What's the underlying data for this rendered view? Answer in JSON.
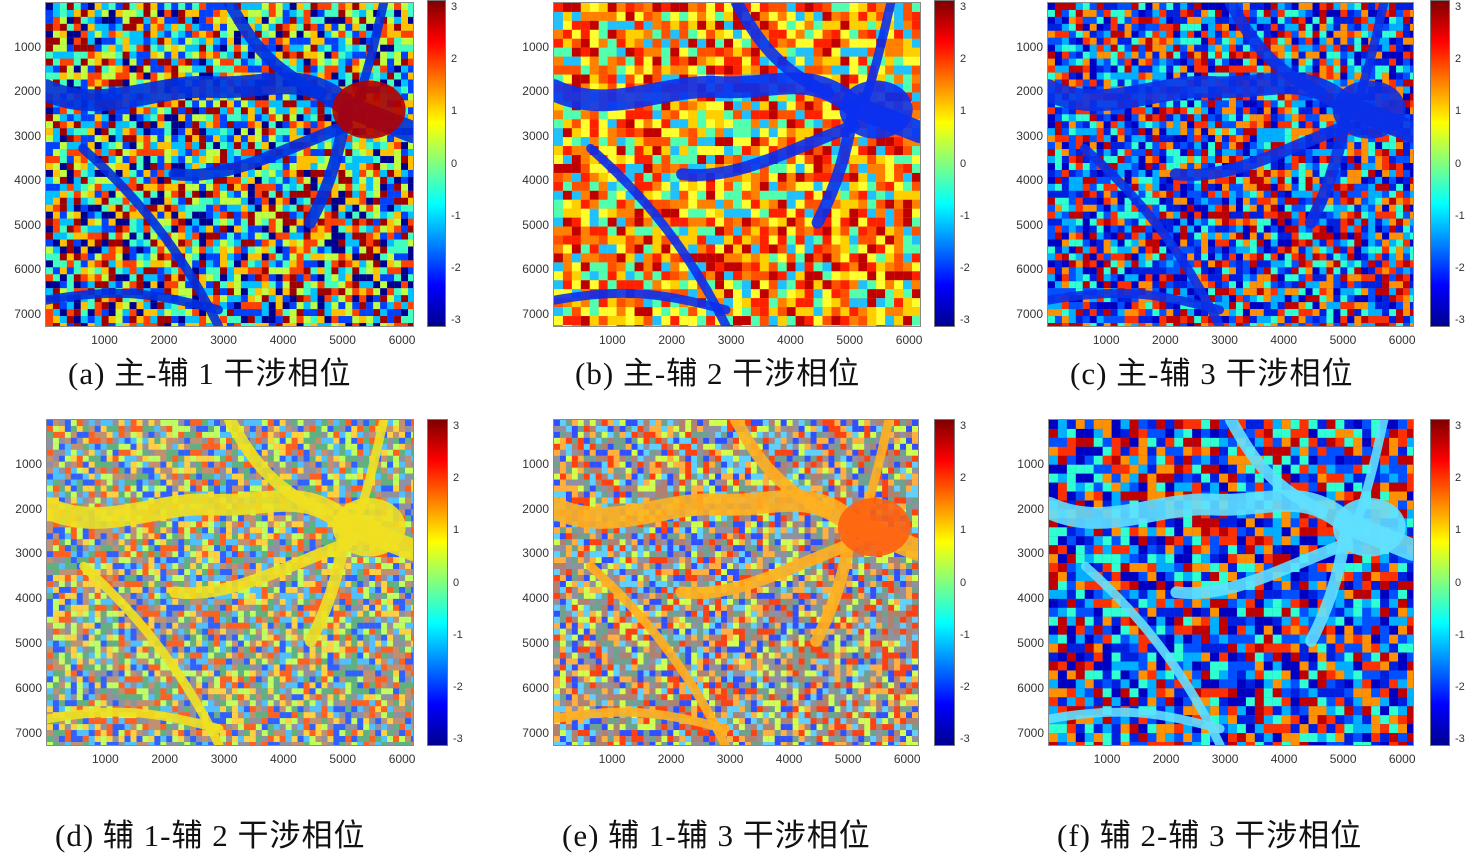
{
  "figure": {
    "panels": [
      {
        "id": "a",
        "caption": "(a)  主-辅 1 干涉相位",
        "pattern": "fringe-dense",
        "dominant": "mixed"
      },
      {
        "id": "b",
        "caption": "(b)  主-辅 2 干涉相位",
        "pattern": "smooth",
        "dominant": "red-yellow"
      },
      {
        "id": "c",
        "caption": "(c)  主-辅 3 干涉相位",
        "pattern": "fringe-dense",
        "dominant": "blue-red"
      },
      {
        "id": "d",
        "caption": "(d)  辅 1-辅 2 干涉相位",
        "pattern": "noisy",
        "dominant": "noise-yellow"
      },
      {
        "id": "e",
        "caption": "(e)  辅 1-辅 3 干涉相位",
        "pattern": "noisy",
        "dominant": "noise-orange"
      },
      {
        "id": "f",
        "caption": "(f)  辅 2-辅 3 干涉相位",
        "pattern": "smooth",
        "dominant": "blue-red"
      }
    ],
    "y_ticks": [
      "1000",
      "2000",
      "3000",
      "4000",
      "5000",
      "6000",
      "7000"
    ],
    "x_ticks": [
      "1000",
      "2000",
      "3000",
      "4000",
      "5000",
      "6000"
    ],
    "colorbar_ticks": [
      "3",
      "2",
      "1",
      "0",
      "-1",
      "-2",
      "-3"
    ]
  },
  "chart_data": [
    {
      "type": "heatmap",
      "title": "(a) 主-辅 1 干涉相位",
      "xlabel": "",
      "ylabel": "",
      "xlim": [
        0,
        6200
      ],
      "ylim": [
        7300,
        0
      ],
      "x_ticks": [
        1000,
        2000,
        3000,
        4000,
        5000,
        6000
      ],
      "y_ticks": [
        1000,
        2000,
        3000,
        4000,
        5000,
        6000,
        7000
      ],
      "colorbar": {
        "range": [
          -3.14,
          3.14
        ],
        "ticks": [
          -3,
          -2,
          -1,
          0,
          1,
          2,
          3
        ],
        "colormap": "jet"
      }
    },
    {
      "type": "heatmap",
      "title": "(b) 主-辅 2 干涉相位",
      "xlabel": "",
      "ylabel": "",
      "xlim": [
        0,
        6200
      ],
      "ylim": [
        7300,
        0
      ],
      "x_ticks": [
        1000,
        2000,
        3000,
        4000,
        5000,
        6000
      ],
      "y_ticks": [
        1000,
        2000,
        3000,
        4000,
        5000,
        6000,
        7000
      ],
      "colorbar": {
        "range": [
          -3.14,
          3.14
        ],
        "ticks": [
          -3,
          -2,
          -1,
          0,
          1,
          2,
          3
        ],
        "colormap": "jet"
      }
    },
    {
      "type": "heatmap",
      "title": "(c) 主-辅 3 干涉相位",
      "xlabel": "",
      "ylabel": "",
      "xlim": [
        0,
        6200
      ],
      "ylim": [
        7300,
        0
      ],
      "x_ticks": [
        1000,
        2000,
        3000,
        4000,
        5000,
        6000
      ],
      "y_ticks": [
        1000,
        2000,
        3000,
        4000,
        5000,
        6000,
        7000
      ],
      "colorbar": {
        "range": [
          -3.14,
          3.14
        ],
        "ticks": [
          -3,
          -2,
          -1,
          0,
          1,
          2,
          3
        ],
        "colormap": "jet"
      }
    },
    {
      "type": "heatmap",
      "title": "(d) 辅 1-辅 2 干涉相位",
      "xlabel": "",
      "ylabel": "",
      "xlim": [
        0,
        6200
      ],
      "ylim": [
        7300,
        0
      ],
      "x_ticks": [
        1000,
        2000,
        3000,
        4000,
        5000,
        6000
      ],
      "y_ticks": [
        1000,
        2000,
        3000,
        4000,
        5000,
        6000,
        7000
      ],
      "colorbar": {
        "range": [
          -3.14,
          3.14
        ],
        "ticks": [
          -3,
          -2,
          -1,
          0,
          1,
          2,
          3
        ],
        "colormap": "jet"
      }
    },
    {
      "type": "heatmap",
      "title": "(e) 辅 1-辅 3 干涉相位",
      "xlabel": "",
      "ylabel": "",
      "xlim": [
        0,
        6200
      ],
      "ylim": [
        7300,
        0
      ],
      "x_ticks": [
        1000,
        2000,
        3000,
        4000,
        5000,
        6000
      ],
      "y_ticks": [
        1000,
        2000,
        3000,
        4000,
        5000,
        6000,
        7000
      ],
      "colorbar": {
        "range": [
          -3.14,
          3.14
        ],
        "ticks": [
          -3,
          -2,
          -1,
          0,
          1,
          2,
          3
        ],
        "colormap": "jet"
      }
    },
    {
      "type": "heatmap",
      "title": "(f) 辅 2-辅 3 干涉相位",
      "xlabel": "",
      "ylabel": "",
      "xlim": [
        0,
        6200
      ],
      "ylim": [
        7300,
        0
      ],
      "x_ticks": [
        1000,
        2000,
        3000,
        4000,
        5000,
        6000
      ],
      "y_ticks": [
        1000,
        2000,
        3000,
        4000,
        5000,
        6000,
        7000
      ],
      "colorbar": {
        "range": [
          -3.14,
          3.14
        ],
        "ticks": [
          -3,
          -2,
          -1,
          0,
          1,
          2,
          3
        ],
        "colormap": "jet"
      }
    }
  ]
}
